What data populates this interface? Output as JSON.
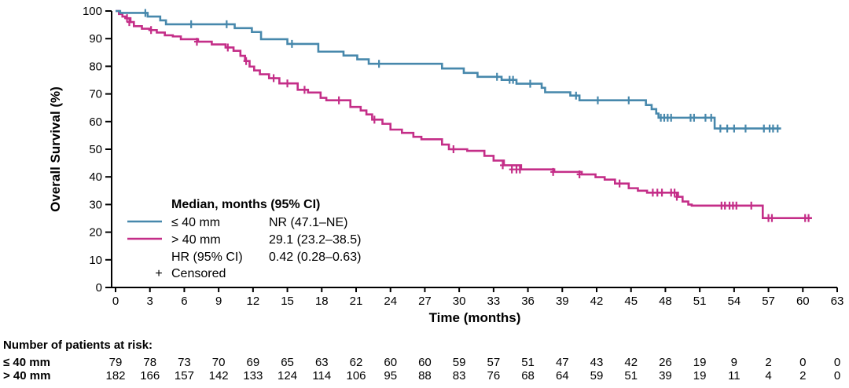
{
  "chart_data": {
    "type": "line",
    "subtype": "kaplan-meier-step",
    "title": "",
    "xlabel": "Time (months)",
    "ylabel": "Overall Survival (%)",
    "xlim": [
      0,
      63
    ],
    "ylim": [
      0,
      100
    ],
    "grid": false,
    "xticks": [
      0,
      3,
      6,
      9,
      12,
      15,
      18,
      21,
      24,
      27,
      30,
      33,
      36,
      39,
      42,
      45,
      48,
      51,
      54,
      57,
      60,
      63
    ],
    "yticks": [
      0,
      10,
      20,
      30,
      40,
      50,
      60,
      70,
      80,
      90,
      100
    ],
    "series": [
      {
        "name": "≤ 40 mm",
        "color": "#4788AC",
        "median_95ci": "NR (47.1–NE)",
        "steps": [
          [
            0,
            100
          ],
          [
            0.4,
            99.3
          ],
          [
            2.8,
            98.0
          ],
          [
            3.9,
            96.6
          ],
          [
            4.4,
            95.2
          ],
          [
            10.4,
            93.8
          ],
          [
            11.9,
            92.4
          ],
          [
            12.7,
            89.8
          ],
          [
            15.0,
            88.1
          ],
          [
            17.7,
            85.3
          ],
          [
            19.9,
            83.9
          ],
          [
            21.1,
            82.5
          ],
          [
            22.1,
            80.9
          ],
          [
            28.5,
            79.2
          ],
          [
            30.4,
            77.6
          ],
          [
            31.6,
            76.2
          ],
          [
            33.7,
            75.1
          ],
          [
            35.0,
            73.7
          ],
          [
            37.2,
            72.2
          ],
          [
            37.5,
            70.6
          ],
          [
            39.7,
            69.4
          ],
          [
            40.5,
            67.7
          ],
          [
            46.3,
            66.0
          ],
          [
            46.8,
            64.5
          ],
          [
            47.2,
            62.9
          ],
          [
            47.4,
            61.4
          ],
          [
            52.3,
            57.5
          ],
          [
            58.1,
            57.5
          ]
        ],
        "censors": [
          [
            2.6,
            99.3
          ],
          [
            6.6,
            95.2
          ],
          [
            9.7,
            95.2
          ],
          [
            15.4,
            88.1
          ],
          [
            23.0,
            80.9
          ],
          [
            33.3,
            76.2
          ],
          [
            34.4,
            75.1
          ],
          [
            34.7,
            75.1
          ],
          [
            36.2,
            73.7
          ],
          [
            40.2,
            69.4
          ],
          [
            42.1,
            67.7
          ],
          [
            44.8,
            67.7
          ],
          [
            47.6,
            61.4
          ],
          [
            47.9,
            61.4
          ],
          [
            48.2,
            61.4
          ],
          [
            48.5,
            61.4
          ],
          [
            50.2,
            61.4
          ],
          [
            50.5,
            61.4
          ],
          [
            51.5,
            61.4
          ],
          [
            52.0,
            61.4
          ],
          [
            52.8,
            57.5
          ],
          [
            53.4,
            57.5
          ],
          [
            54.0,
            57.5
          ],
          [
            55.0,
            57.5
          ],
          [
            56.6,
            57.5
          ],
          [
            57.1,
            57.5
          ],
          [
            57.4,
            57.5
          ],
          [
            57.8,
            57.5
          ]
        ]
      },
      {
        "name": "> 40 mm",
        "color": "#C42E88",
        "median_95ci": "29.1 (23.2–38.5)",
        "steps": [
          [
            0,
            100
          ],
          [
            0.3,
            98.9
          ],
          [
            0.6,
            98.0
          ],
          [
            0.9,
            97.4
          ],
          [
            1.3,
            96.0
          ],
          [
            1.6,
            94.5
          ],
          [
            2.3,
            93.6
          ],
          [
            3.0,
            93.1
          ],
          [
            3.6,
            92.2
          ],
          [
            4.3,
            91.2
          ],
          [
            5.0,
            90.8
          ],
          [
            5.7,
            89.8
          ],
          [
            7.2,
            88.9
          ],
          [
            8.4,
            87.9
          ],
          [
            9.6,
            86.8
          ],
          [
            10.3,
            85.6
          ],
          [
            10.9,
            83.8
          ],
          [
            11.3,
            81.9
          ],
          [
            11.7,
            79.9
          ],
          [
            12.1,
            78.5
          ],
          [
            12.6,
            77.1
          ],
          [
            13.4,
            75.7
          ],
          [
            14.3,
            73.8
          ],
          [
            15.9,
            71.5
          ],
          [
            16.8,
            70.5
          ],
          [
            17.9,
            68.6
          ],
          [
            18.4,
            67.7
          ],
          [
            20.5,
            65.3
          ],
          [
            21.4,
            64.0
          ],
          [
            21.9,
            62.6
          ],
          [
            22.4,
            60.7
          ],
          [
            23.3,
            59.2
          ],
          [
            24.0,
            57.1
          ],
          [
            25.0,
            55.9
          ],
          [
            26.0,
            54.5
          ],
          [
            26.7,
            53.6
          ],
          [
            28.5,
            51.7
          ],
          [
            29.1,
            50.0
          ],
          [
            30.7,
            49.4
          ],
          [
            32.2,
            47.6
          ],
          [
            33.0,
            45.9
          ],
          [
            33.9,
            44.2
          ],
          [
            35.4,
            42.7
          ],
          [
            38.3,
            41.8
          ],
          [
            40.7,
            40.9
          ],
          [
            41.9,
            39.9
          ],
          [
            42.7,
            39.0
          ],
          [
            43.6,
            37.6
          ],
          [
            44.8,
            35.9
          ],
          [
            45.6,
            35.0
          ],
          [
            46.4,
            34.3
          ],
          [
            49.1,
            32.8
          ],
          [
            49.5,
            31.1
          ],
          [
            50.0,
            30.0
          ],
          [
            50.3,
            29.6
          ],
          [
            56.5,
            25.1
          ],
          [
            60.8,
            25.1
          ]
        ],
        "censors": [
          [
            1.0,
            97.4
          ],
          [
            1.2,
            96.0
          ],
          [
            3.1,
            93.1
          ],
          [
            7.1,
            88.9
          ],
          [
            9.8,
            86.8
          ],
          [
            11.4,
            81.9
          ],
          [
            13.8,
            75.7
          ],
          [
            15.0,
            73.8
          ],
          [
            16.5,
            71.5
          ],
          [
            19.5,
            67.7
          ],
          [
            22.6,
            60.7
          ],
          [
            29.5,
            50.0
          ],
          [
            33.8,
            44.2
          ],
          [
            34.6,
            42.7
          ],
          [
            35.0,
            42.7
          ],
          [
            35.3,
            42.7
          ],
          [
            38.2,
            41.8
          ],
          [
            40.5,
            40.9
          ],
          [
            44.0,
            37.6
          ],
          [
            46.9,
            34.3
          ],
          [
            47.3,
            34.3
          ],
          [
            47.7,
            34.3
          ],
          [
            48.5,
            34.3
          ],
          [
            48.8,
            34.3
          ],
          [
            49.0,
            32.8
          ],
          [
            52.9,
            29.6
          ],
          [
            53.2,
            29.6
          ],
          [
            53.6,
            29.6
          ],
          [
            53.9,
            29.6
          ],
          [
            54.2,
            29.6
          ],
          [
            55.5,
            29.6
          ],
          [
            57.0,
            25.1
          ],
          [
            57.3,
            25.1
          ],
          [
            60.2,
            25.1
          ],
          [
            60.5,
            25.1
          ]
        ]
      }
    ],
    "legend": {
      "position": "inside-lower-left",
      "header": "Median, months (95% CI)",
      "rows": [
        {
          "label": "≤ 40 mm",
          "value": "NR (47.1–NE)",
          "series": 0
        },
        {
          "label": "> 40 mm",
          "value": "29.1 (23.2–38.5)",
          "series": 1
        },
        {
          "label": "HR (95% CI)",
          "value": "0.42 (0.28–0.63)"
        }
      ],
      "censored_symbol": "+",
      "censored_label": "Censored"
    },
    "risk_table": {
      "header": "Number of patients at risk:",
      "timepoints": [
        0,
        3,
        6,
        9,
        12,
        15,
        18,
        21,
        24,
        27,
        30,
        33,
        36,
        39,
        42,
        45,
        48,
        51,
        54,
        57,
        60,
        63
      ],
      "rows": [
        {
          "label": "≤ 40 mm",
          "series": 0,
          "values": [
            79,
            78,
            73,
            70,
            69,
            65,
            63,
            62,
            60,
            60,
            59,
            57,
            51,
            47,
            43,
            42,
            26,
            19,
            9,
            2,
            0,
            0
          ]
        },
        {
          "label": "> 40 mm",
          "series": 1,
          "values": [
            182,
            166,
            157,
            142,
            133,
            124,
            114,
            106,
            95,
            88,
            83,
            76,
            68,
            64,
            59,
            51,
            39,
            19,
            11,
            4,
            2,
            0
          ]
        }
      ]
    },
    "colors": {
      "axis": "#000000",
      "text": "#000000",
      "background": "#ffffff"
    }
  }
}
